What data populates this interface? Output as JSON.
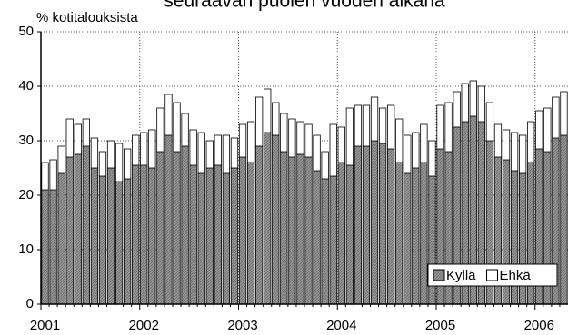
{
  "chart_data": {
    "type": "bar",
    "stacked": true,
    "title": "seuraavan puolen vuoden aikana",
    "y_label": "% kotitalouksista",
    "categories": [
      "2001",
      null,
      null,
      null,
      null,
      null,
      null,
      null,
      null,
      null,
      null,
      null,
      "2002",
      null,
      null,
      null,
      null,
      null,
      null,
      null,
      null,
      null,
      null,
      null,
      "2003",
      null,
      null,
      null,
      null,
      null,
      null,
      null,
      null,
      null,
      null,
      null,
      "2004",
      null,
      null,
      null,
      null,
      null,
      null,
      null,
      null,
      null,
      null,
      null,
      "2005",
      null,
      null,
      null,
      null,
      null,
      null,
      null,
      null,
      null,
      null,
      null,
      "2006",
      null,
      null,
      null
    ],
    "series": [
      {
        "name": "Kyllä",
        "color": "#9a9a9a",
        "values": [
          21,
          21,
          24,
          27,
          27.5,
          29,
          25,
          23.5,
          25,
          22.5,
          23,
          25.5,
          25.5,
          25,
          28,
          31,
          28,
          29,
          25.5,
          24,
          25,
          25.5,
          24,
          25,
          27,
          26,
          29,
          31.5,
          31,
          28,
          27,
          27.5,
          27,
          24.5,
          23,
          23.5,
          26,
          25.5,
          29,
          29,
          30,
          29.5,
          28.5,
          26,
          24,
          25,
          26,
          23.5,
          28.5,
          28,
          32.5,
          33.5,
          34.5,
          33.5,
          30,
          27,
          26.5,
          24.5,
          24,
          26,
          28.5,
          28,
          30.5,
          31
        ]
      },
      {
        "name": "Ehkä",
        "color": "#ffffff",
        "values": [
          5,
          5.5,
          5,
          7,
          5.5,
          5,
          5.5,
          4.5,
          5,
          7,
          5.5,
          5.5,
          6,
          7,
          8,
          7.5,
          9,
          6,
          6.5,
          7.5,
          5,
          5.5,
          7,
          5.5,
          6,
          7.5,
          9,
          8,
          6,
          7,
          7,
          6,
          6,
          6.5,
          5,
          9.5,
          6.5,
          10.5,
          7.5,
          7.5,
          8,
          6.5,
          8,
          8,
          7,
          6.5,
          7,
          6.5,
          8,
          9,
          6.5,
          7,
          6.5,
          6.5,
          7,
          6,
          5.5,
          7,
          7,
          7.5,
          7,
          8,
          7.5,
          8
        ]
      }
    ],
    "ylim": [
      0,
      50
    ],
    "yticks": [
      0,
      10,
      20,
      30,
      40,
      50
    ],
    "grid": true,
    "legend": "lower right"
  }
}
